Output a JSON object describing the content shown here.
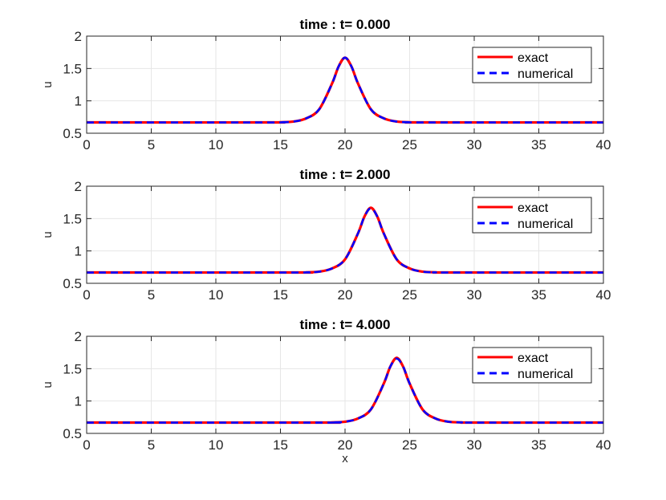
{
  "chart_data": [
    {
      "type": "line",
      "title": "time : t= 0.000",
      "xlabel": "",
      "ylabel": "u",
      "xlim": [
        0,
        40
      ],
      "ylim": [
        0.5,
        2
      ],
      "xticks": [
        "0",
        "5",
        "10",
        "15",
        "20",
        "25",
        "30",
        "35",
        "40"
      ],
      "yticks": [
        "0.5",
        "1",
        "1.5",
        "2"
      ],
      "grid": true,
      "legend": "top-right",
      "series": [
        {
          "name": "exact",
          "color": "#ff0000",
          "style": "solid",
          "x": [
            0,
            14,
            15,
            16,
            17,
            18,
            19,
            19.5,
            20,
            20.5,
            21,
            22,
            23,
            24,
            25,
            26,
            40
          ],
          "y": [
            0.667,
            0.667,
            0.67,
            0.68,
            0.73,
            0.87,
            1.27,
            1.53,
            1.667,
            1.53,
            1.27,
            0.87,
            0.73,
            0.68,
            0.67,
            0.667,
            0.667
          ]
        },
        {
          "name": "numerical",
          "color": "#0000ff",
          "style": "dashed",
          "x": [
            0,
            14,
            15,
            16,
            17,
            18,
            19,
            19.5,
            20,
            20.5,
            21,
            22,
            23,
            24,
            25,
            26,
            40
          ],
          "y": [
            0.667,
            0.667,
            0.67,
            0.68,
            0.73,
            0.87,
            1.27,
            1.53,
            1.667,
            1.53,
            1.27,
            0.87,
            0.73,
            0.68,
            0.67,
            0.667,
            0.667
          ]
        }
      ]
    },
    {
      "type": "line",
      "title": "time : t= 2.000",
      "xlabel": "",
      "ylabel": "u",
      "xlim": [
        0,
        40
      ],
      "ylim": [
        0.5,
        2
      ],
      "xticks": [
        "0",
        "5",
        "10",
        "15",
        "20",
        "25",
        "30",
        "35",
        "40"
      ],
      "yticks": [
        "0.5",
        "1",
        "1.5",
        "2"
      ],
      "grid": true,
      "legend": "top-right",
      "series": [
        {
          "name": "exact",
          "color": "#ff0000",
          "style": "solid",
          "x": [
            0,
            16,
            17,
            18,
            19,
            20,
            21,
            21.5,
            22,
            22.5,
            23,
            24,
            25,
            26,
            27,
            28,
            40
          ],
          "y": [
            0.667,
            0.667,
            0.67,
            0.68,
            0.73,
            0.87,
            1.27,
            1.53,
            1.667,
            1.53,
            1.27,
            0.87,
            0.73,
            0.68,
            0.67,
            0.667,
            0.667
          ]
        },
        {
          "name": "numerical",
          "color": "#0000ff",
          "style": "dashed",
          "x": [
            0,
            16,
            17,
            18,
            19,
            20,
            21,
            21.5,
            22,
            22.5,
            23,
            24,
            25,
            26,
            27,
            28,
            40
          ],
          "y": [
            0.667,
            0.667,
            0.67,
            0.68,
            0.73,
            0.87,
            1.27,
            1.53,
            1.66,
            1.53,
            1.27,
            0.87,
            0.73,
            0.68,
            0.67,
            0.667,
            0.667
          ]
        }
      ]
    },
    {
      "type": "line",
      "title": "time : t= 4.000",
      "xlabel": "x",
      "ylabel": "u",
      "xlim": [
        0,
        40
      ],
      "ylim": [
        0.5,
        2
      ],
      "xticks": [
        "0",
        "5",
        "10",
        "15",
        "20",
        "25",
        "30",
        "35",
        "40"
      ],
      "yticks": [
        "0.5",
        "1",
        "1.5",
        "2"
      ],
      "grid": true,
      "legend": "top-right",
      "series": [
        {
          "name": "exact",
          "color": "#ff0000",
          "style": "solid",
          "x": [
            0,
            18,
            19,
            20,
            21,
            22,
            23,
            23.5,
            24,
            24.5,
            25,
            26,
            27,
            28,
            29,
            30,
            40
          ],
          "y": [
            0.667,
            0.667,
            0.67,
            0.68,
            0.73,
            0.87,
            1.27,
            1.53,
            1.667,
            1.53,
            1.27,
            0.87,
            0.73,
            0.68,
            0.67,
            0.667,
            0.667
          ]
        },
        {
          "name": "numerical",
          "color": "#0000ff",
          "style": "dashed",
          "x": [
            0,
            18,
            19,
            20,
            21,
            22,
            23,
            23.5,
            24,
            24.5,
            25,
            26,
            27,
            28,
            29,
            30,
            40
          ],
          "y": [
            0.667,
            0.667,
            0.67,
            0.68,
            0.73,
            0.87,
            1.27,
            1.53,
            1.655,
            1.53,
            1.27,
            0.87,
            0.73,
            0.68,
            0.67,
            0.667,
            0.667
          ]
        }
      ]
    }
  ]
}
